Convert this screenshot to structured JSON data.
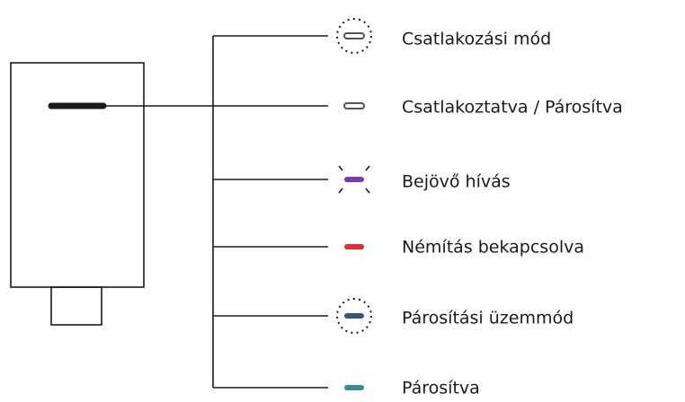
{
  "labels": [
    "Csatlakozási mód",
    "Csatlakoztatva / Párosítva",
    "Bejövő hívás",
    "Némítás bekapcsolva",
    "Párosítási üzemmód",
    "Párosítva"
  ]
}
